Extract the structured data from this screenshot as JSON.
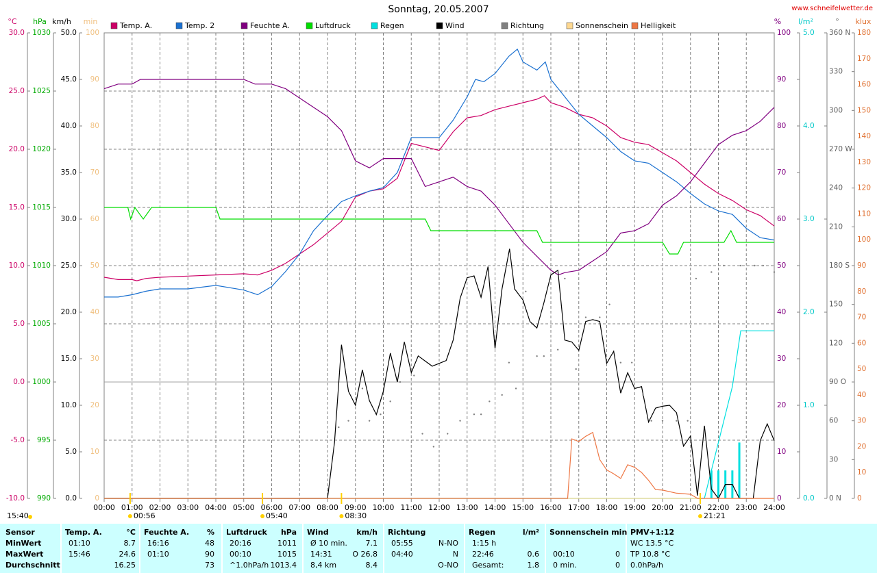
{
  "chart_data": {
    "type": "line",
    "title": "Sonntag, 20.05.2007",
    "source": "www.schneifelwetter.de",
    "xlim": [
      0,
      24
    ],
    "xticks": [
      {
        "value": 0,
        "label": "00:00"
      },
      {
        "value": 1,
        "label": "01:00"
      },
      {
        "value": 2,
        "label": "02:00"
      },
      {
        "value": 3,
        "label": "03:00"
      },
      {
        "value": 4,
        "label": "04:00"
      },
      {
        "value": 5,
        "label": "05:00"
      },
      {
        "value": 6,
        "label": "06:00"
      },
      {
        "value": 7,
        "label": "07:00"
      },
      {
        "value": 8,
        "label": "08:00"
      },
      {
        "value": 9,
        "label": "09:00"
      },
      {
        "value": 10,
        "label": "10:00"
      },
      {
        "value": 11,
        "label": "11:00"
      },
      {
        "value": 12,
        "label": "12:00"
      },
      {
        "value": 13,
        "label": "13:00"
      },
      {
        "value": 14,
        "label": "14:00"
      },
      {
        "value": 15,
        "label": "15:00"
      },
      {
        "value": 16,
        "label": "16:00"
      },
      {
        "value": 17,
        "label": "17:00"
      },
      {
        "value": 18,
        "label": "18:00"
      },
      {
        "value": 19,
        "label": "19:00"
      },
      {
        "value": 20,
        "label": "20:00"
      },
      {
        "value": 21,
        "label": "21:00"
      },
      {
        "value": 22,
        "label": "22:00"
      },
      {
        "value": 23,
        "label": "23:00"
      },
      {
        "value": 24,
        "label": "24:00"
      }
    ],
    "grid": true,
    "axes": [
      {
        "label": "°C",
        "color": "#cc0066",
        "side": "left",
        "lim": [
          -10,
          30
        ],
        "ticks": [
          {
            "value": -10,
            "label": "-10.0"
          },
          {
            "value": -5,
            "label": "-5.0"
          },
          {
            "value": 0,
            "label": "0.0"
          },
          {
            "value": 5,
            "label": "5.0"
          },
          {
            "value": 10,
            "label": "10.0"
          },
          {
            "value": 15,
            "label": "15.0"
          },
          {
            "value": 20,
            "label": "20.0"
          },
          {
            "value": 25,
            "label": "25.0"
          },
          {
            "value": 30,
            "label": "30.0"
          }
        ]
      },
      {
        "label": "hPa",
        "color": "#00aa00",
        "side": "left",
        "lim": [
          990,
          1030
        ],
        "ticks": [
          990,
          995,
          1000,
          1005,
          1010,
          1015,
          1020,
          1025,
          1030
        ]
      },
      {
        "label": "km/h",
        "color": "#000000",
        "side": "left",
        "lim": [
          0,
          50
        ],
        "ticks": [
          {
            "value": 0,
            "label": "0.0"
          },
          {
            "value": 5,
            "label": "5.0"
          },
          {
            "value": 10,
            "label": "10.0"
          },
          {
            "value": 15,
            "label": "15.0"
          },
          {
            "value": 20,
            "label": "20.0"
          },
          {
            "value": 25,
            "label": "25.0"
          },
          {
            "value": 30,
            "label": "30.0"
          },
          {
            "value": 35,
            "label": "35.0"
          },
          {
            "value": 40,
            "label": "40.0"
          },
          {
            "value": 45,
            "label": "45.0"
          },
          {
            "value": 50,
            "label": "50.0"
          }
        ]
      },
      {
        "label": "min",
        "color": "#f0c080",
        "side": "left",
        "lim": [
          0,
          100
        ],
        "ticks": [
          0,
          10,
          20,
          30,
          40,
          50,
          60,
          70,
          80,
          90,
          100
        ]
      },
      {
        "label": "%",
        "color": "#800080",
        "side": "right",
        "lim": [
          0,
          100
        ],
        "ticks": [
          0,
          10,
          20,
          30,
          40,
          50,
          60,
          70,
          80,
          90,
          100
        ]
      },
      {
        "label": "l/m²",
        "color": "#00c8c8",
        "side": "right",
        "lim": [
          0,
          5
        ],
        "ticks": [
          {
            "value": 0,
            "label": "0.0"
          },
          {
            "value": 1,
            "label": "1.0"
          },
          {
            "value": 2,
            "label": "2.0"
          },
          {
            "value": 3,
            "label": "3.0"
          },
          {
            "value": 4,
            "label": "4.0"
          },
          {
            "value": 5,
            "label": "5.0"
          }
        ]
      },
      {
        "label": "°",
        "color": "#606060",
        "side": "right",
        "lim": [
          0,
          360
        ],
        "ticks": [
          {
            "value": 0,
            "label": "0   N"
          },
          30,
          60,
          {
            "value": 90,
            "label": "90   O"
          },
          120,
          150,
          {
            "value": 180,
            "label": "180 S"
          },
          210,
          240,
          {
            "value": 270,
            "label": "270 W"
          },
          300,
          330,
          {
            "value": 360,
            "label": "360 N"
          }
        ]
      },
      {
        "label": "klux",
        "color": "#e07030",
        "side": "right",
        "lim": [
          0,
          180
        ],
        "ticks": [
          0,
          10,
          20,
          30,
          40,
          50,
          60,
          70,
          80,
          90,
          100,
          110,
          120,
          130,
          140,
          150,
          160,
          170,
          180
        ]
      }
    ],
    "series": [
      {
        "name": "Temp. A.",
        "color": "#cc0066",
        "axis": 0,
        "type": "line",
        "x": [
          0,
          0.5,
          1,
          1.17,
          1.5,
          2,
          3,
          4,
          5,
          5.5,
          6,
          6.5,
          7,
          7.5,
          8,
          8.5,
          9,
          9.5,
          10,
          10.5,
          11,
          11.5,
          12,
          12.5,
          13,
          13.5,
          14,
          14.5,
          15,
          15.5,
          15.77,
          16,
          16.5,
          17,
          17.5,
          18,
          18.5,
          19,
          19.5,
          20,
          20.5,
          21,
          21.5,
          22,
          22.5,
          23,
          23.5,
          24
        ],
        "values": [
          9.0,
          8.8,
          8.8,
          8.7,
          8.9,
          9.0,
          9.1,
          9.2,
          9.3,
          9.2,
          9.6,
          10.2,
          11.0,
          11.8,
          12.8,
          13.8,
          15.9,
          16.4,
          16.6,
          17.5,
          20.5,
          20.2,
          19.9,
          21.5,
          22.7,
          22.9,
          23.4,
          23.7,
          24.0,
          24.3,
          24.6,
          24.0,
          23.6,
          23.0,
          22.7,
          22.0,
          21.0,
          20.6,
          20.4,
          19.7,
          19.0,
          18.0,
          17.0,
          16.2,
          15.6,
          14.8,
          14.3,
          13.4
        ]
      },
      {
        "name": "Temp. 2",
        "color": "#1a70d0",
        "axis": 0,
        "type": "line",
        "x": [
          0,
          0.5,
          1,
          1.5,
          2,
          3,
          4,
          5,
          5.5,
          6,
          6.5,
          7,
          7.5,
          8,
          8.5,
          9,
          9.5,
          10,
          10.5,
          11,
          11.5,
          12,
          12.5,
          13,
          13.3,
          13.6,
          14,
          14.5,
          14.8,
          15,
          15.5,
          15.8,
          16,
          16.5,
          17,
          17.5,
          18,
          18.5,
          19,
          19.5,
          20,
          20.5,
          21,
          21.5,
          22,
          22.5,
          23,
          23.5,
          24
        ],
        "values": [
          7.3,
          7.3,
          7.5,
          7.8,
          8.0,
          8.0,
          8.3,
          7.9,
          7.5,
          8.2,
          9.5,
          11.0,
          13.0,
          14.3,
          15.5,
          16.0,
          16.4,
          16.7,
          18.0,
          21.0,
          21.0,
          21.0,
          22.5,
          24.5,
          26.0,
          25.8,
          26.5,
          28.0,
          28.6,
          27.5,
          26.8,
          27.5,
          26.0,
          24.5,
          23.0,
          22.0,
          21.0,
          19.8,
          19.0,
          18.8,
          18.0,
          17.2,
          16.2,
          15.3,
          14.7,
          14.4,
          13.2,
          12.4,
          12.2
        ]
      },
      {
        "name": "Feuchte A.",
        "color": "#800080",
        "axis": 4,
        "type": "line",
        "x": [
          0,
          0.5,
          1,
          1.3,
          2,
          3,
          4,
          5,
          5.4,
          6,
          6.5,
          7,
          7.5,
          8,
          8.5,
          9,
          9.5,
          10,
          10.5,
          11,
          11.5,
          12,
          12.5,
          13,
          13.5,
          14,
          14.5,
          15,
          15.5,
          16,
          16.27,
          16.5,
          17,
          17.5,
          18,
          18.5,
          19,
          19.5,
          20,
          20.5,
          21,
          21.5,
          22,
          22.5,
          23,
          23.5,
          24
        ],
        "values": [
          88,
          89,
          89,
          90,
          90,
          90,
          90,
          90,
          89,
          89,
          88,
          86,
          84,
          82,
          79,
          72.5,
          71,
          73,
          73,
          73,
          67,
          68,
          69,
          67,
          66,
          63,
          59,
          55,
          52,
          49,
          48,
          48.5,
          49,
          51,
          53,
          57,
          57.5,
          59,
          63,
          65,
          68,
          72,
          76,
          78,
          79,
          81,
          84
        ]
      },
      {
        "name": "Luftdruck",
        "color": "#00dd00",
        "axis": 1,
        "type": "line",
        "x": [
          0,
          0.85,
          0.95,
          1.1,
          1.4,
          1.7,
          4,
          4.15,
          11.5,
          11.7,
          15.5,
          15.7,
          20,
          20.25,
          20.55,
          20.75,
          22.2,
          22.45,
          22.65,
          24
        ],
        "values": [
          1015,
          1015,
          1014,
          1015,
          1014,
          1015,
          1015,
          1014,
          1014,
          1013,
          1013,
          1012,
          1012,
          1011,
          1011,
          1012,
          1012,
          1013,
          1012,
          1012
        ]
      },
      {
        "name": "Regen",
        "color": "#00e0e0",
        "axis": 5,
        "type": "line",
        "x": [
          0,
          21.5,
          22,
          22.5,
          22.8,
          24
        ],
        "values": [
          0,
          0,
          0.6,
          1.2,
          1.8,
          1.8
        ],
        "bars": {
          "x": [
            21.75,
            22.0,
            22.25,
            22.5,
            22.75
          ],
          "values": [
            0.3,
            0.3,
            0.3,
            0.3,
            0.6
          ]
        }
      },
      {
        "name": "Wind",
        "color": "#000000",
        "axis": 2,
        "type": "line",
        "x": [
          0,
          8,
          8.25,
          8.5,
          8.75,
          9,
          9.25,
          9.5,
          9.75,
          10,
          10.25,
          10.5,
          10.75,
          11,
          11.25,
          11.75,
          12,
          12.25,
          12.5,
          12.75,
          13,
          13.25,
          13.5,
          13.75,
          14,
          14.25,
          14.52,
          14.7,
          15,
          15.25,
          15.5,
          15.75,
          16,
          16.25,
          16.5,
          16.75,
          17,
          17.25,
          17.5,
          17.75,
          18,
          18.25,
          18.5,
          18.75,
          19,
          19.25,
          19.5,
          19.75,
          20,
          20.25,
          20.5,
          20.75,
          21,
          21.25,
          21.5,
          21.75,
          22,
          22.25,
          22.5,
          22.75,
          23,
          23.25,
          23.5,
          23.75,
          24
        ],
        "values": [
          0,
          0,
          6.0,
          16.5,
          11.5,
          10.0,
          13.8,
          10.5,
          9.0,
          11.5,
          15.6,
          12.5,
          16.8,
          13.5,
          15.3,
          14.2,
          14.5,
          14.8,
          17.0,
          21.5,
          23.7,
          23.9,
          21.6,
          24.9,
          16.1,
          22.5,
          26.8,
          22.5,
          21.3,
          19.0,
          18.3,
          21.0,
          24.0,
          24.5,
          17.0,
          16.8,
          15.9,
          19.0,
          19.2,
          19.0,
          14.5,
          15.8,
          11.3,
          13.5,
          11.8,
          12.0,
          8.2,
          9.7,
          9.9,
          10.0,
          9.2,
          5.6,
          6.7,
          0.3,
          7.8,
          1.0,
          0,
          1.5,
          1.5,
          0,
          0,
          0,
          6.2,
          8.0,
          6.2
        ]
      },
      {
        "name": "Richtung",
        "color": "#808080",
        "axis": 6,
        "type": "dots",
        "x": [
          8.4,
          8.75,
          9.25,
          9.5,
          9.9,
          10.25,
          10.6,
          11.1,
          11.4,
          11.8,
          12.3,
          12.75,
          13.25,
          13.5,
          13.8,
          14.25,
          14.5,
          14.75,
          15.1,
          15.5,
          15.75,
          16.25,
          16.5,
          16.9,
          17.25,
          17.75,
          18.1,
          18.5,
          18.9,
          19.3,
          19.6,
          20.0,
          20.5,
          20.9,
          21.2,
          21.75,
          22.2,
          22.8,
          23.3,
          23.6,
          24
        ],
        "values": [
          55,
          60,
          85,
          60,
          65,
          75,
          90,
          95,
          50,
          40,
          50,
          60,
          65,
          65,
          75,
          80,
          105,
          85,
          160,
          110,
          110,
          115,
          170,
          100,
          140,
          140,
          150,
          105,
          105,
          80,
          60,
          60,
          60,
          60,
          170,
          175,
          180,
          180,
          180,
          180,
          175
        ]
      },
      {
        "name": "Sonnenschein",
        "color": "#ffd890",
        "axis": 3,
        "type": "line",
        "x": [
          0,
          24
        ],
        "values": [
          0,
          0
        ]
      },
      {
        "name": "Helligkeit",
        "color": "#ee7744",
        "axis": 7,
        "type": "line",
        "x": [
          0,
          16.6,
          16.75,
          17,
          17.25,
          17.5,
          17.75,
          18,
          18.25,
          18.5,
          18.75,
          19,
          19.25,
          19.5,
          19.75,
          20,
          20.5,
          21,
          21.25,
          24
        ],
        "values": [
          0,
          0,
          23,
          22,
          24,
          25.5,
          15,
          11,
          9.5,
          7.7,
          13,
          12,
          10,
          7,
          3.4,
          3.2,
          2,
          1.6,
          0,
          0
        ]
      }
    ],
    "events": [
      {
        "x": 0.93,
        "label": "00:56"
      },
      {
        "x": 5.67,
        "label": "05:40"
      },
      {
        "x": 8.5,
        "label": "08:30"
      },
      {
        "x": 21.35,
        "label": "21:21"
      }
    ],
    "note": "15:40"
  },
  "stats": {
    "sensor": "Sensor",
    "columns": [
      {
        "name": "Temp. A.",
        "unit": "°C"
      },
      {
        "name": "Feuchte A.",
        "unit": "%"
      },
      {
        "name": "Luftdruck",
        "unit": "hPa"
      },
      {
        "name": "Wind",
        "unit": "km/h"
      },
      {
        "name": "Richtung",
        "unit": null
      },
      {
        "name": "Regen",
        "unit": "l/m²"
      },
      {
        "name": "Sonnenschein min",
        "unit": null
      },
      {
        "name": "PMV+1:12",
        "unit": null
      }
    ],
    "rows": [
      {
        "label": "MinWert",
        "cells": [
          [
            "01:10",
            "8.7"
          ],
          [
            "16:16",
            "48"
          ],
          [
            "20:16",
            "1011"
          ],
          [
            "Ø 10 min.",
            "7.1"
          ],
          [
            "05:55",
            "N-NO"
          ],
          [
            "1:15 h",
            null
          ],
          [
            null,
            null
          ],
          [
            "WC 13.5 °C",
            null
          ]
        ]
      },
      {
        "label": "MaxWert",
        "cells": [
          [
            "15:46",
            "24.6"
          ],
          [
            "01:10",
            "90"
          ],
          [
            "00:10",
            "1015"
          ],
          [
            "14:31",
            "O 26.8"
          ],
          [
            "04:40",
            "N"
          ],
          [
            "22:46",
            "0.6"
          ],
          [
            "00:10",
            "0"
          ],
          [
            "TP 10.8 °C",
            null
          ]
        ]
      },
      {
        "label": "Durchschnitt",
        "cells": [
          [
            null,
            "16.25"
          ],
          [
            null,
            "73"
          ],
          [
            "^1.0hPa/h",
            "1013.4"
          ],
          [
            "8,4 km",
            "8.4"
          ],
          [
            null,
            "O-NO"
          ],
          [
            "Gesamt:",
            "1.8"
          ],
          [
            "0 min.",
            "0"
          ],
          [
            "0.0hPa/h",
            null
          ]
        ]
      }
    ]
  }
}
